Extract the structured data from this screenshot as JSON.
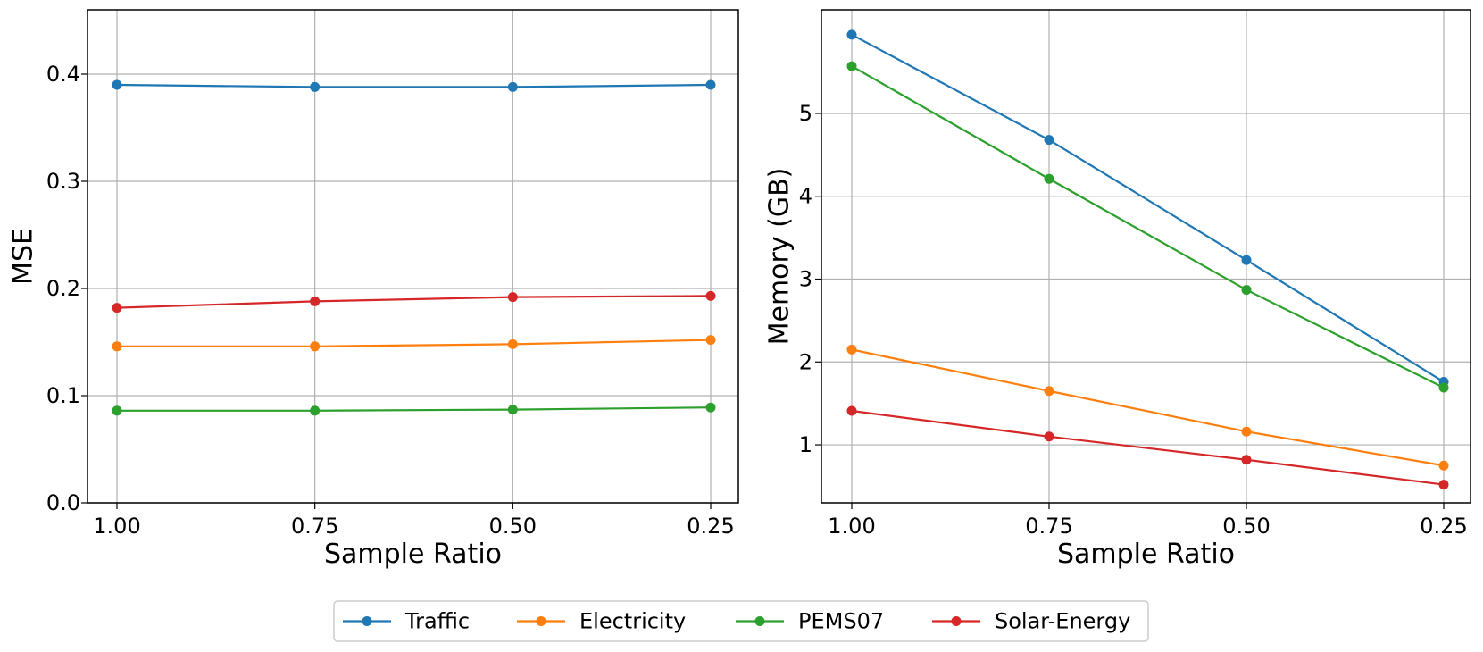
{
  "colors": {
    "Traffic": "#1f77b4",
    "Electricity": "#ff7f0e",
    "PEMS07": "#2ca02c",
    "Solar-Energy": "#d62728",
    "grid": "#b0b0b0",
    "legend_border": "#cccccc"
  },
  "legend": {
    "placement": "bottom-center",
    "entries": [
      "Traffic",
      "Electricity",
      "PEMS07",
      "Solar-Energy"
    ]
  },
  "chart_data": [
    {
      "type": "line",
      "title": "",
      "xlabel": "Sample Ratio",
      "ylabel": "MSE",
      "categories": [
        "1.00",
        "0.75",
        "0.50",
        "0.25"
      ],
      "yticks": [
        "0.0",
        "0.1",
        "0.2",
        "0.3",
        "0.4"
      ],
      "ylim": [
        0.0,
        0.46
      ],
      "grid": true,
      "series": [
        {
          "name": "Traffic",
          "values": [
            0.39,
            0.388,
            0.388,
            0.39
          ]
        },
        {
          "name": "Electricity",
          "values": [
            0.146,
            0.146,
            0.148,
            0.152
          ]
        },
        {
          "name": "PEMS07",
          "values": [
            0.086,
            0.086,
            0.087,
            0.089
          ]
        },
        {
          "name": "Solar-Energy",
          "values": [
            0.182,
            0.188,
            0.192,
            0.193
          ]
        }
      ]
    },
    {
      "type": "line",
      "title": "",
      "xlabel": "Sample Ratio",
      "ylabel": "Memory (GB)",
      "categories": [
        "1.00",
        "0.75",
        "0.50",
        "0.25"
      ],
      "yticks": [
        "1",
        "2",
        "3",
        "4",
        "5"
      ],
      "ylim": [
        0.3,
        6.25
      ],
      "grid": true,
      "series": [
        {
          "name": "Traffic",
          "values": [
            5.95,
            4.68,
            3.23,
            1.76
          ]
        },
        {
          "name": "Electricity",
          "values": [
            2.15,
            1.65,
            1.16,
            0.75
          ]
        },
        {
          "name": "PEMS07",
          "values": [
            5.57,
            4.21,
            2.87,
            1.69
          ]
        },
        {
          "name": "Solar-Energy",
          "values": [
            1.41,
            1.1,
            0.82,
            0.52
          ]
        }
      ]
    }
  ]
}
